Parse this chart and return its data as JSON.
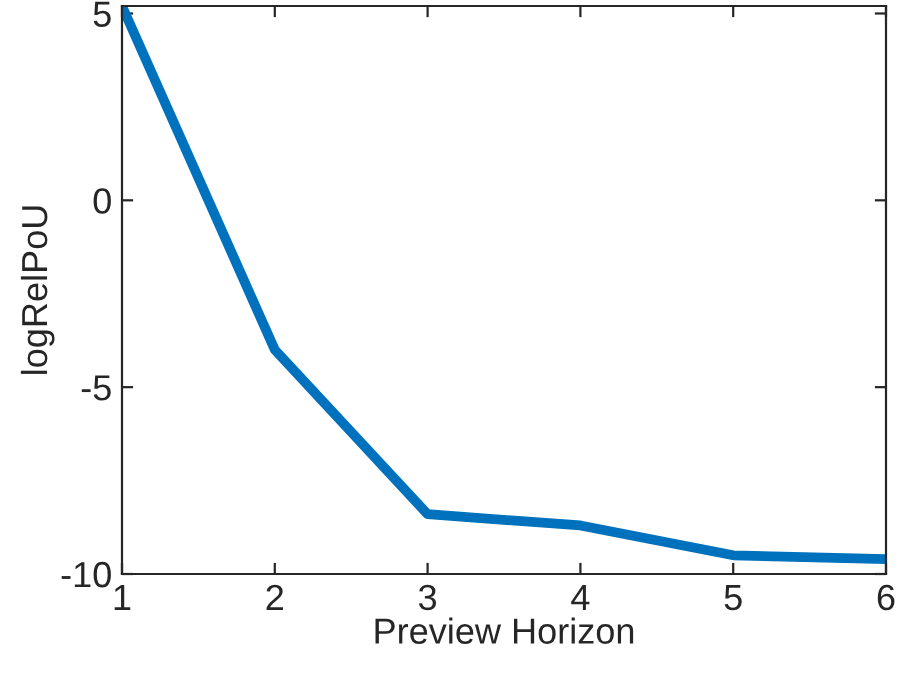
{
  "chart_data": {
    "type": "line",
    "xlabel": "Preview Horizon",
    "ylabel": "logRelPoU",
    "x": [
      1,
      2,
      3,
      4,
      5,
      6
    ],
    "series": [
      {
        "color": "#0072bd",
        "values": [
          5.2,
          -4.0,
          -8.4,
          -8.7,
          -9.5,
          -9.6
        ]
      }
    ],
    "xlim": [
      1,
      6
    ],
    "xticks": [
      1,
      2,
      3,
      4,
      5,
      6
    ],
    "ylim": [
      -10,
      5.2
    ],
    "yticks": [
      -10,
      -5,
      0,
      5
    ],
    "grid": false,
    "legend": false,
    "marker": "none",
    "line_style": "solid"
  }
}
